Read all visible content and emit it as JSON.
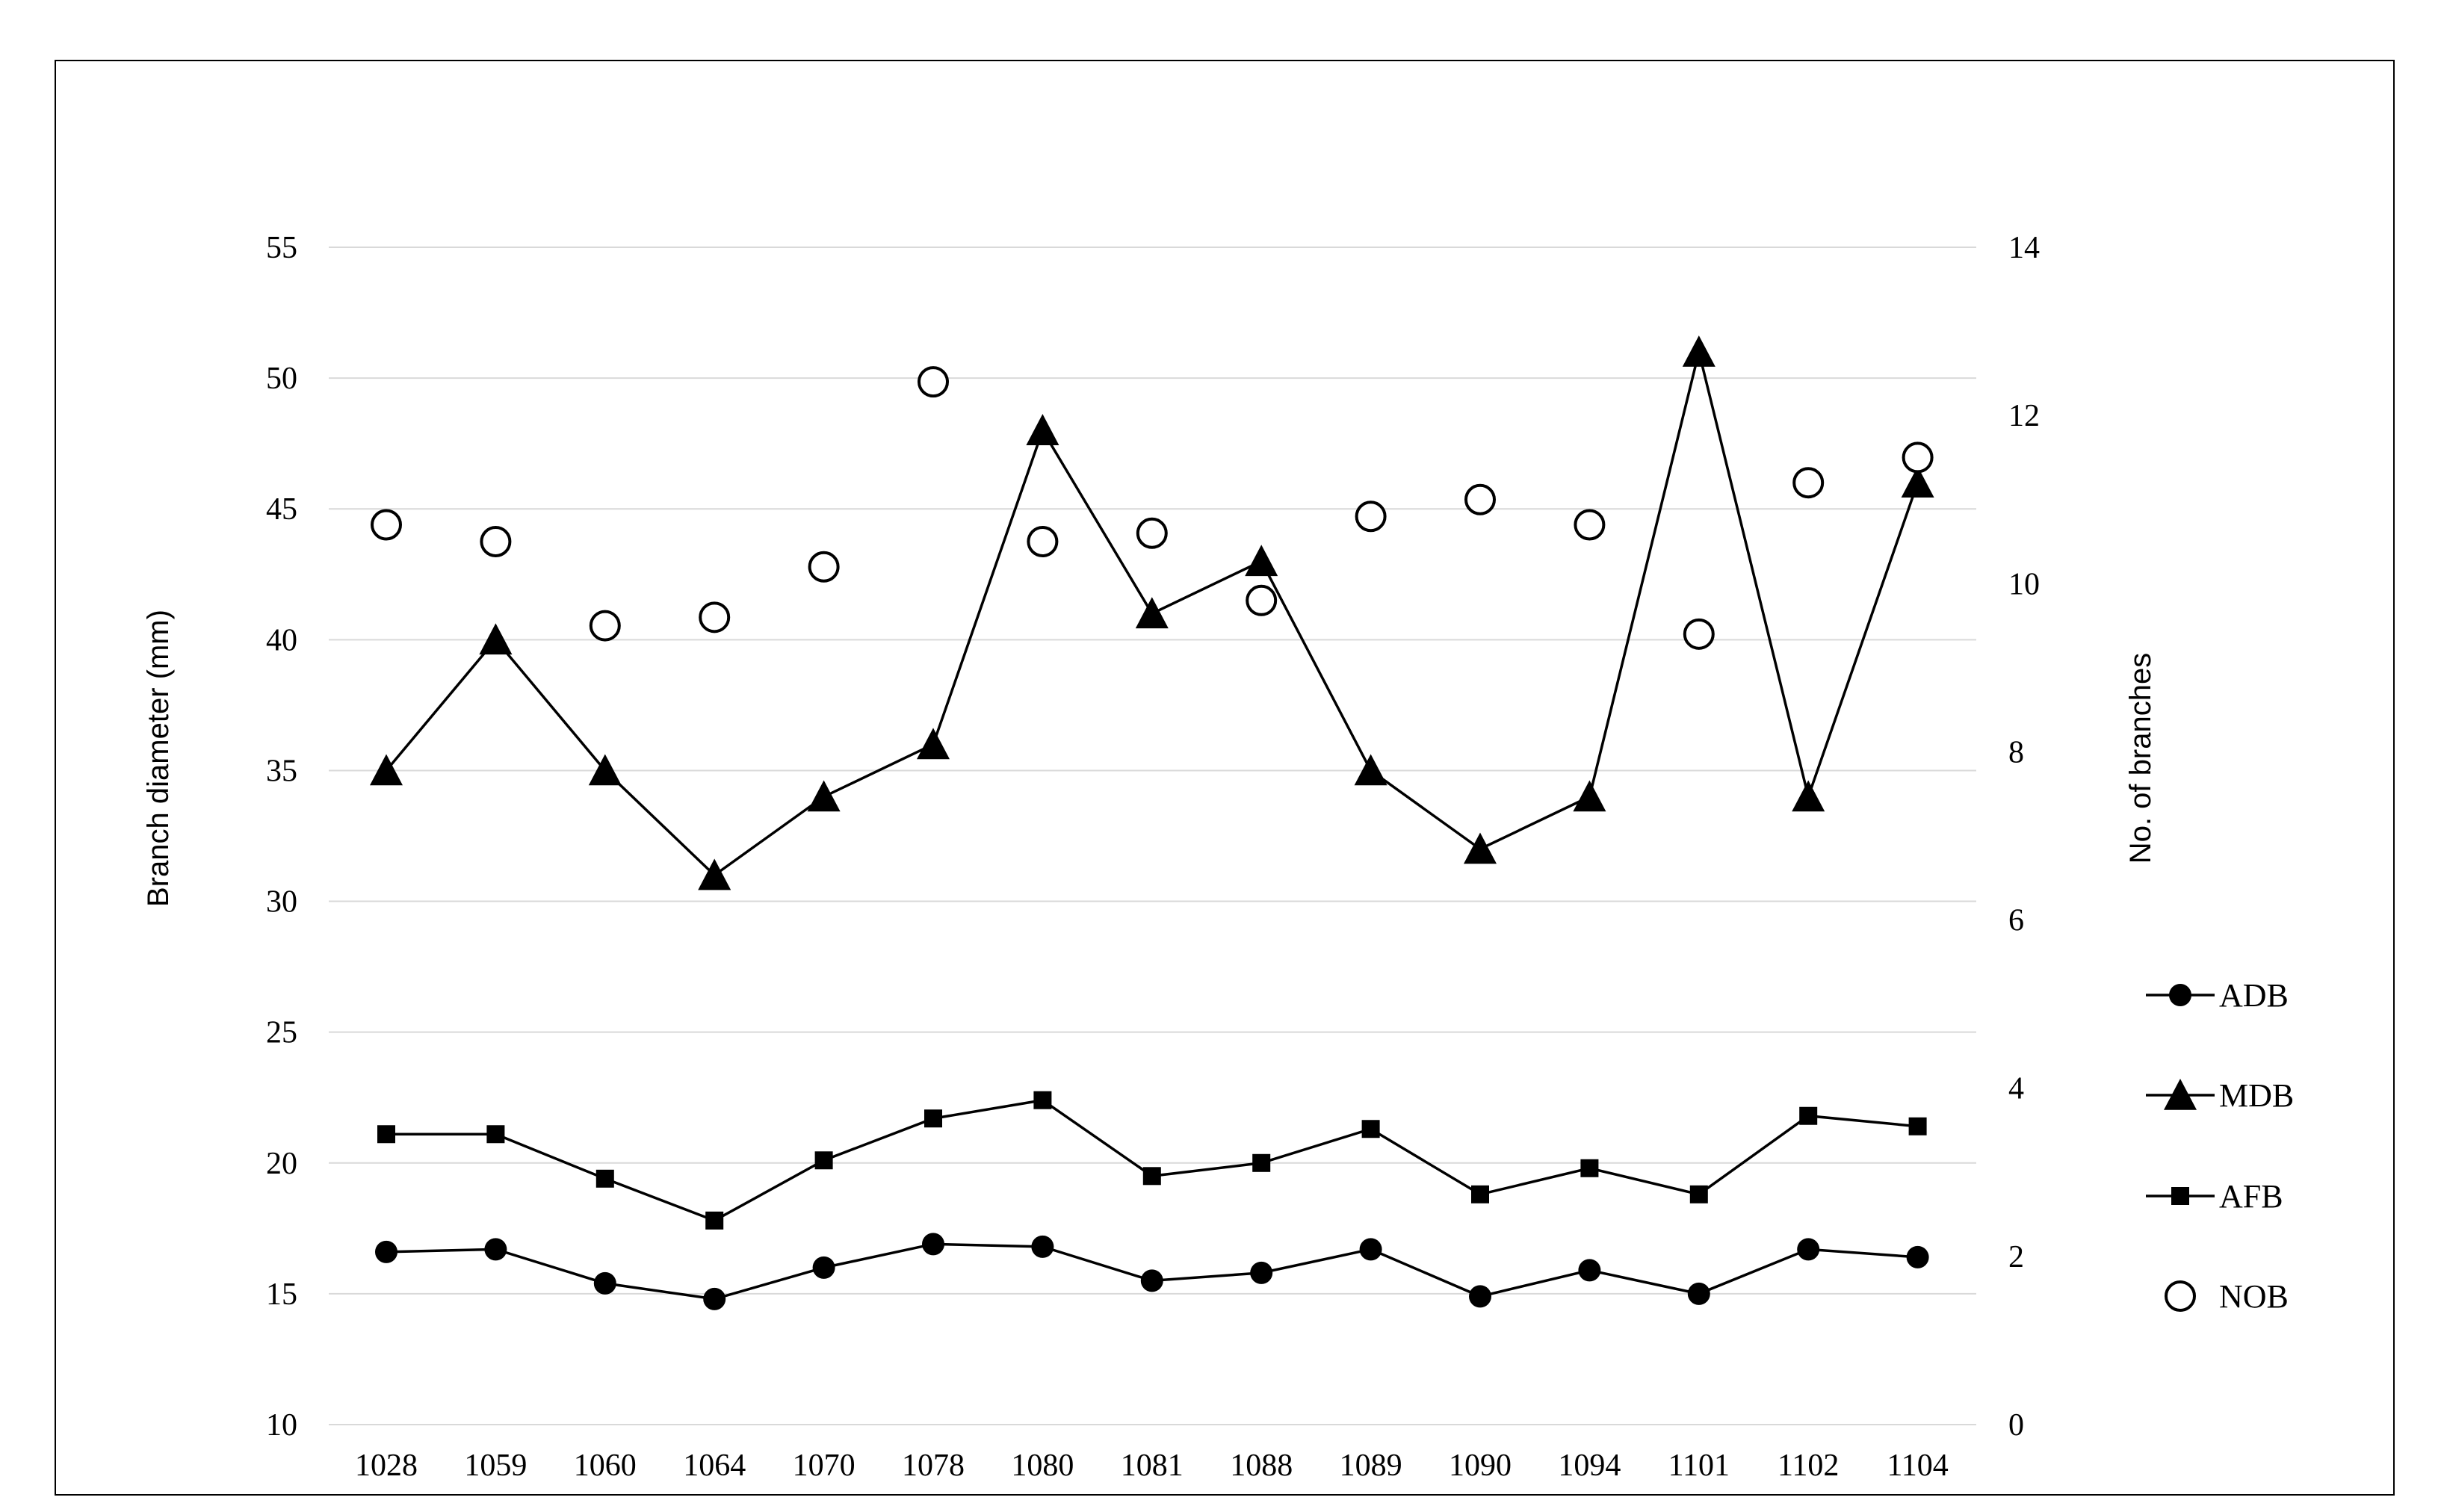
{
  "chart_data": {
    "type": "line",
    "categories": [
      "1028",
      "1059",
      "1060",
      "1064",
      "1070",
      "1078",
      "1080",
      "1081",
      "1088",
      "1089",
      "1090",
      "1094",
      "1101",
      "1102",
      "1104"
    ],
    "y_left": {
      "label": "Branch diameter (mm)",
      "lim": [
        10,
        55
      ],
      "ticks": [
        "10",
        "15",
        "20",
        "25",
        "30",
        "35",
        "40",
        "45",
        "50",
        "55"
      ]
    },
    "y_right": {
      "label": "No. of branches",
      "lim": [
        0,
        14
      ],
      "ticks": [
        "0",
        "2",
        "4",
        "6",
        "8",
        "10",
        "12",
        "14"
      ]
    },
    "grid": true,
    "legend_position": "right",
    "series": [
      {
        "name": "ADB",
        "axis": "left",
        "marker": "filled-circle",
        "line": true,
        "values": [
          16.6,
          16.7,
          15.4,
          14.8,
          16.0,
          16.9,
          16.8,
          15.5,
          15.8,
          16.7,
          14.9,
          15.9,
          15.0,
          16.7,
          16.4
        ]
      },
      {
        "name": "MDB",
        "axis": "left",
        "marker": "filled-triangle",
        "line": true,
        "values": [
          35,
          40,
          35,
          31,
          34,
          36,
          48,
          41,
          43,
          35,
          32,
          34,
          51,
          34,
          46
        ]
      },
      {
        "name": "AFB",
        "axis": "left",
        "marker": "filled-square",
        "line": true,
        "values": [
          21.1,
          21.1,
          19.4,
          17.8,
          20.1,
          21.7,
          22.4,
          19.5,
          20.0,
          21.3,
          18.8,
          19.8,
          18.8,
          21.8,
          21.4
        ]
      },
      {
        "name": "NOB",
        "axis": "right",
        "marker": "open-circle",
        "line": false,
        "values": [
          10.7,
          10.5,
          9.5,
          9.6,
          10.2,
          12.4,
          10.5,
          10.6,
          9.8,
          10.8,
          11.0,
          10.7,
          9.4,
          11.2,
          11.5
        ]
      }
    ]
  }
}
